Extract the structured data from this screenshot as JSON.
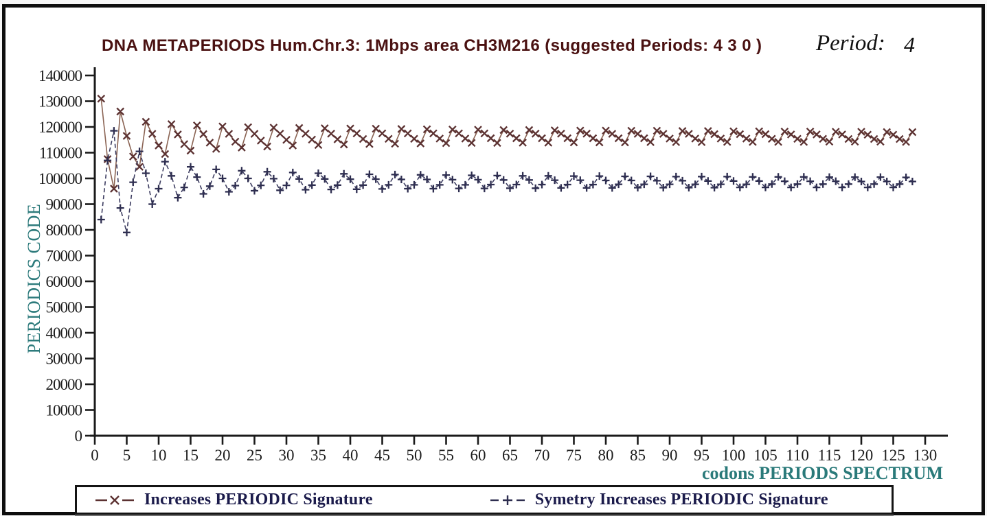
{
  "window": {
    "background": "#ffffff",
    "frame_color": "#0e0e0e"
  },
  "header": {
    "title": "DNA METAPERIODS Hum.Chr.3: 1Mbps area CH3M216 (suggested Periods: 4 3 0 )",
    "title_color": "#4a1111",
    "period_label": "Period:",
    "period_value": "4"
  },
  "chart_data": {
    "type": "line",
    "title": "DNA METAPERIODS Hum.Chr.3: 1Mbps area CH3M216 (suggested Periods: 4 3 0 )",
    "xlabel": "codons PERIODS SPECTRUM",
    "ylabel": "PERIODICS CODE",
    "xlim": [
      0,
      133
    ],
    "ylim": [
      0,
      140000
    ],
    "grid": false,
    "legend_position": "bottom",
    "x_ticks": [
      0,
      5,
      10,
      15,
      20,
      25,
      30,
      35,
      40,
      45,
      50,
      55,
      60,
      65,
      70,
      75,
      80,
      85,
      90,
      95,
      100,
      105,
      110,
      115,
      120,
      125,
      130
    ],
    "y_ticks": [
      0,
      10000,
      20000,
      30000,
      40000,
      50000,
      60000,
      70000,
      80000,
      90000,
      100000,
      110000,
      120000,
      130000,
      140000
    ],
    "x_start": 1,
    "x_step": 1,
    "axis_color": "#1a1a1a",
    "tick_label_color": "#1c1c1c",
    "series": [
      {
        "name": "Increases PERIODIC Signature",
        "marker": "x",
        "line_style": "solid",
        "marker_color": "#5c3232",
        "line_color": "#8a6353",
        "values": [
          131000,
          107500,
          96000,
          126000,
          116500,
          108500,
          104500,
          122000,
          117300,
          112800,
          109500,
          121100,
          117100,
          113300,
          110800,
          120600,
          117200,
          113900,
          111500,
          120200,
          117300,
          114300,
          112000,
          119900,
          117300,
          114700,
          112400,
          119700,
          117400,
          115000,
          112800,
          119600,
          117400,
          115100,
          113000,
          119500,
          117400,
          115200,
          113200,
          119400,
          117500,
          115300,
          113400,
          119300,
          117500,
          115400,
          113500,
          119200,
          117500,
          115400,
          113600,
          119100,
          117500,
          115500,
          113700,
          119000,
          117500,
          115500,
          113800,
          118900,
          117500,
          115600,
          113800,
          118800,
          117400,
          115600,
          113900,
          118800,
          117400,
          115600,
          113900,
          118700,
          117400,
          115600,
          114000,
          118600,
          117400,
          115600,
          114000,
          118600,
          117300,
          115600,
          114000,
          118500,
          117300,
          115600,
          114100,
          118500,
          117300,
          115500,
          114100,
          118400,
          117300,
          115500,
          114100,
          118400,
          117200,
          115500,
          114200,
          118300,
          117200,
          115500,
          114200,
          118300,
          117200,
          115400,
          114200,
          118200,
          117100,
          115400,
          114200,
          118200,
          117100,
          115400,
          114300,
          118100,
          117100,
          115300,
          114300,
          118100,
          117000,
          115300,
          114300,
          118000,
          117000,
          115300,
          114200,
          118000
        ]
      },
      {
        "name": "Symetry Increases PERIODIC Signature",
        "marker": "+",
        "line_style": "dashed",
        "marker_color": "#2e2e50",
        "line_color": "#3c3c60",
        "values": [
          84000,
          107000,
          118500,
          88500,
          79000,
          98500,
          110500,
          102000,
          90000,
          96000,
          106500,
          101000,
          92500,
          96500,
          104500,
          100500,
          94000,
          97000,
          103500,
          100000,
          94800,
          97200,
          103000,
          100000,
          95200,
          97300,
          102600,
          99900,
          95400,
          97300,
          102300,
          99800,
          95600,
          97400,
          102000,
          99800,
          95700,
          97400,
          101800,
          99700,
          95800,
          97400,
          101600,
          99700,
          95900,
          97500,
          101500,
          99600,
          96000,
          97500,
          101400,
          99600,
          96000,
          97500,
          101300,
          99500,
          96100,
          97500,
          101200,
          99500,
          96100,
          97600,
          101100,
          99400,
          96200,
          97600,
          101000,
          99400,
          96200,
          97600,
          101000,
          99300,
          96300,
          97600,
          100900,
          99300,
          96300,
          97600,
          100900,
          99200,
          96300,
          97700,
          100800,
          99200,
          96400,
          97700,
          100800,
          99100,
          96400,
          97700,
          100700,
          99100,
          96400,
          97700,
          100700,
          99000,
          96400,
          97700,
          100700,
          99000,
          96500,
          97700,
          100600,
          99000,
          96500,
          97800,
          100600,
          98900,
          96500,
          97800,
          100600,
          98900,
          96500,
          97800,
          100500,
          98900,
          96500,
          97800,
          100500,
          98800,
          96500,
          97800,
          100500,
          98800,
          96500,
          97800,
          100400,
          98800
        ]
      }
    ]
  },
  "legend": {
    "entry1_marker": "x-series-marker",
    "entry2_marker": "plus-series-marker"
  },
  "labels": {
    "ylabel_color": "#2e7b7c",
    "xlabel_color": "#2a7a7a"
  }
}
